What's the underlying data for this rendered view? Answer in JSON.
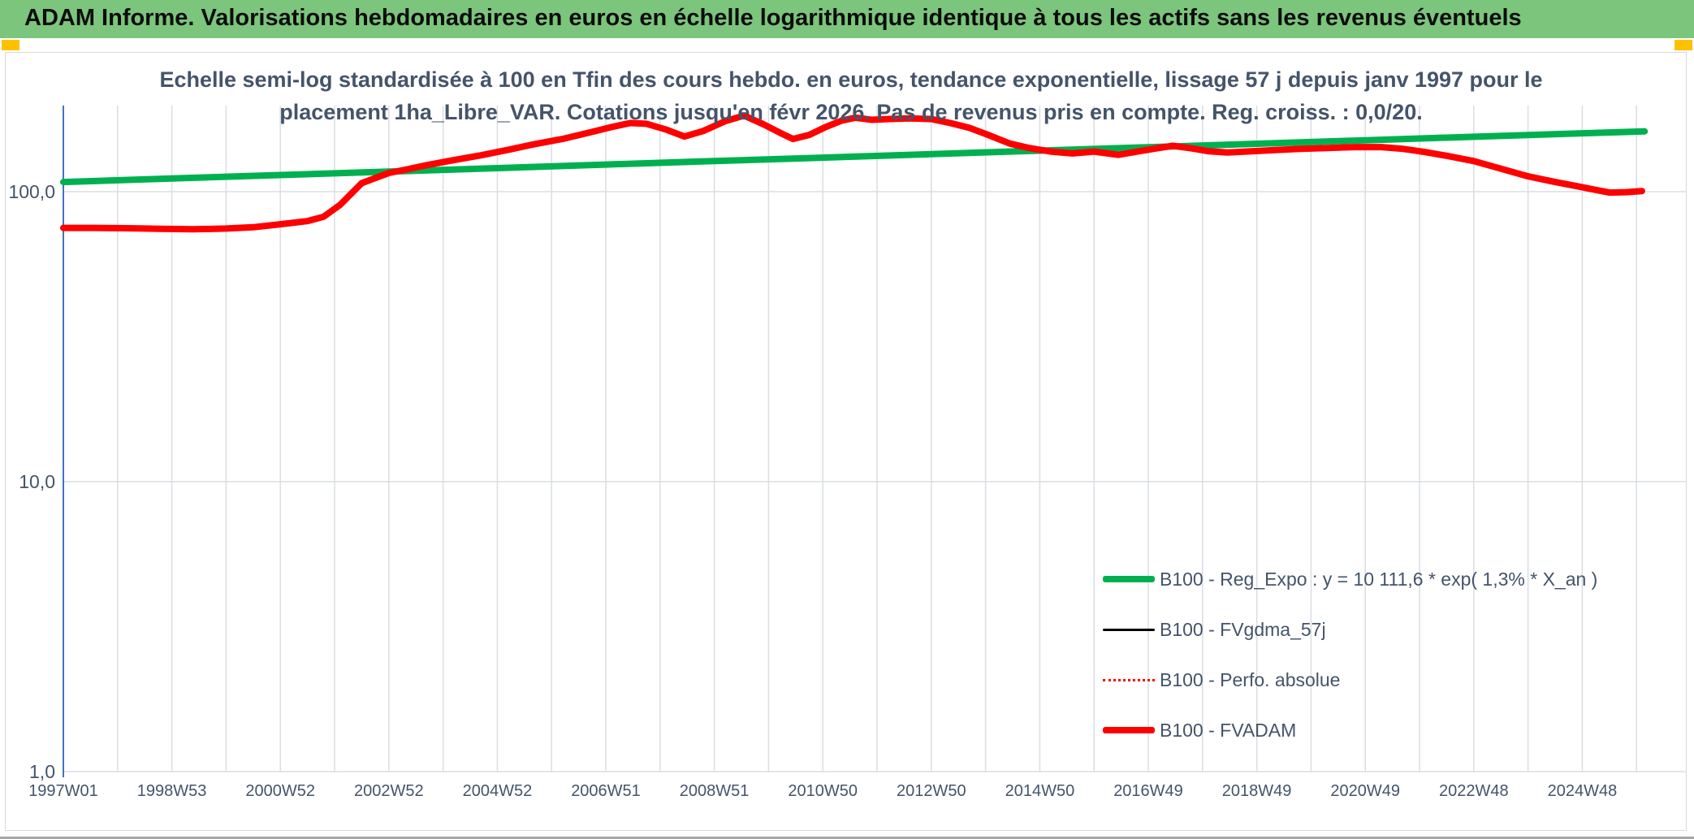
{
  "header": {
    "title": "ADAM Informe. Valorisations hebdomadaires en euros en échelle logarithmique identique à tous les actifs sans les revenus éventuels"
  },
  "chart": {
    "title_line1": "Echelle semi-log standardisée à 100 en Tfin des cours hebdo. en euros, tendance exponentielle, lissage 57 j depuis janv 1997 pour le",
    "title_line2": "placement 1ha_Libre_VAR. Cotations jusqu'en févr 2026. Pas de revenus pris en compte. Reg. croiss. : 0,0/20."
  },
  "colors": {
    "banner_green": "#7CC57C",
    "accent_orange": "#FFC000",
    "text_navy": "#44546A",
    "axis_blue": "#4472C4",
    "gridline": "#dadde2",
    "reg_expo_green": "#00B050",
    "fvadam_red": "#FF0000",
    "fvgdma_black": "#000000"
  },
  "chart_data": {
    "type": "line",
    "title": "Echelle semi-log standardisée à 100 en Tfin des cours hebdo. en euros, tendance exponentielle, lissage 57 j depuis janv 1997 pour le placement 1ha_Libre_VAR. Cotations jusqu'en févr 2026. Pas de revenus pris en compte. Reg. croiss. : 0,0/20.",
    "x_axis": {
      "unit": "ISO week (yearly gridlines, labels every 2 years)",
      "range_years": [
        1997.0,
        2026.2
      ],
      "grid": true
    },
    "y_axis": {
      "scale": "log10",
      "ticks": [
        100,
        10,
        1
      ],
      "tick_labels": [
        "100,0",
        "10,0",
        "1,0"
      ],
      "top_value": 196,
      "grid": true
    },
    "x_ticks": [
      {
        "year": 1997,
        "label": "1997W01"
      },
      {
        "year": 1999,
        "label": "1998W53"
      },
      {
        "year": 2001,
        "label": "2000W52"
      },
      {
        "year": 2003,
        "label": "2002W52"
      },
      {
        "year": 2005,
        "label": "2004W52"
      },
      {
        "year": 2007,
        "label": "2006W51"
      },
      {
        "year": 2009,
        "label": "2008W51"
      },
      {
        "year": 2011,
        "label": "2010W50"
      },
      {
        "year": 2013,
        "label": "2012W50"
      },
      {
        "year": 2015,
        "label": "2014W50"
      },
      {
        "year": 2017,
        "label": "2016W49"
      },
      {
        "year": 2019,
        "label": "2018W49"
      },
      {
        "year": 2021,
        "label": "2020W49"
      },
      {
        "year": 2023,
        "label": "2022W48"
      },
      {
        "year": 2025,
        "label": "2024W48"
      }
    ],
    "series": [
      {
        "name": "B100 - Reg_Expo : y = 10 111,6 * exp( 1,3% *  X_an )",
        "color": "#00B050",
        "style": "solid",
        "width": 8,
        "points": [
          [
            1997,
            108
          ],
          [
            1999,
            111
          ],
          [
            2001,
            114.1
          ],
          [
            2003,
            117.3
          ],
          [
            2005,
            120.6
          ],
          [
            2007,
            124
          ],
          [
            2009,
            127.5
          ],
          [
            2011,
            131
          ],
          [
            2013,
            134.7
          ],
          [
            2015,
            138.5
          ],
          [
            2017,
            142.4
          ],
          [
            2019,
            146.3
          ],
          [
            2021,
            150.4
          ],
          [
            2023,
            154.7
          ],
          [
            2025,
            159
          ],
          [
            2026.15,
            161.4
          ]
        ]
      },
      {
        "name": "B100 - FVgdma_57j",
        "color": "#000000",
        "style": "solid",
        "width": 3,
        "points_same_as": 3,
        "note": "hidden beneath FVADAM curve"
      },
      {
        "name": "B100 - Perfo. absolue",
        "color": "#FF0000",
        "style": "dotted",
        "width": 2.5,
        "points_same_as": 3,
        "note": "hidden beneath FVADAM curve"
      },
      {
        "name": "B100 - FVADAM",
        "color": "#FF0000",
        "style": "solid",
        "width": 8,
        "points": [
          [
            1997,
            75
          ],
          [
            1997.6,
            75
          ],
          [
            1998.2,
            74.8
          ],
          [
            1998.8,
            74.4
          ],
          [
            1999.4,
            74.2
          ],
          [
            2000,
            74.6
          ],
          [
            2000.5,
            75.4
          ],
          [
            2001,
            77.2
          ],
          [
            2001.5,
            79.2
          ],
          [
            2001.8,
            82
          ],
          [
            2002.1,
            90
          ],
          [
            2002.5,
            107
          ],
          [
            2003,
            116
          ],
          [
            2003.3,
            119
          ],
          [
            2003.7,
            123.5
          ],
          [
            2004.2,
            128.5
          ],
          [
            2004.7,
            133.5
          ],
          [
            2005.2,
            139.5
          ],
          [
            2005.7,
            146
          ],
          [
            2006.2,
            152
          ],
          [
            2006.7,
            160
          ],
          [
            2007.1,
            167
          ],
          [
            2007.45,
            172.5
          ],
          [
            2007.75,
            171.5
          ],
          [
            2008.1,
            164
          ],
          [
            2008.45,
            155
          ],
          [
            2008.8,
            162
          ],
          [
            2009.2,
            175
          ],
          [
            2009.55,
            183
          ],
          [
            2009.9,
            171
          ],
          [
            2010.2,
            160
          ],
          [
            2010.45,
            152
          ],
          [
            2010.75,
            157
          ],
          [
            2011.05,
            167
          ],
          [
            2011.35,
            176
          ],
          [
            2011.6,
            180
          ],
          [
            2011.9,
            177
          ],
          [
            2012.2,
            178
          ],
          [
            2012.6,
            179
          ],
          [
            2013,
            178
          ],
          [
            2013.35,
            172.5
          ],
          [
            2013.7,
            166
          ],
          [
            2014.05,
            157
          ],
          [
            2014.45,
            146.5
          ],
          [
            2014.8,
            141.5
          ],
          [
            2015.2,
            137.5
          ],
          [
            2015.6,
            135.5
          ],
          [
            2016,
            137.5
          ],
          [
            2016.45,
            134
          ],
          [
            2016.8,
            137.5
          ],
          [
            2017.15,
            141
          ],
          [
            2017.45,
            144
          ],
          [
            2017.8,
            141
          ],
          [
            2018.1,
            138
          ],
          [
            2018.45,
            136.5
          ],
          [
            2018.8,
            137.5
          ],
          [
            2019.3,
            139
          ],
          [
            2019.8,
            140.5
          ],
          [
            2020.3,
            141.5
          ],
          [
            2020.8,
            142.5
          ],
          [
            2021.3,
            142.5
          ],
          [
            2021.7,
            140.5
          ],
          [
            2022.1,
            137
          ],
          [
            2022.5,
            133
          ],
          [
            2023,
            127.5
          ],
          [
            2023.5,
            120
          ],
          [
            2024,
            113
          ],
          [
            2024.5,
            108
          ],
          [
            2024.9,
            104.5
          ],
          [
            2025.2,
            101.8
          ],
          [
            2025.5,
            99.3
          ],
          [
            2025.8,
            99.6
          ],
          [
            2026.1,
            100.5
          ]
        ]
      }
    ],
    "legend_position": "inside lower-right",
    "legend_order": [
      "B100 - Reg_Expo : y = 10 111,6 * exp( 1,3% *  X_an )",
      "B100 - FVgdma_57j",
      "B100 - Perfo. absolue",
      "B100 - FVADAM"
    ]
  }
}
